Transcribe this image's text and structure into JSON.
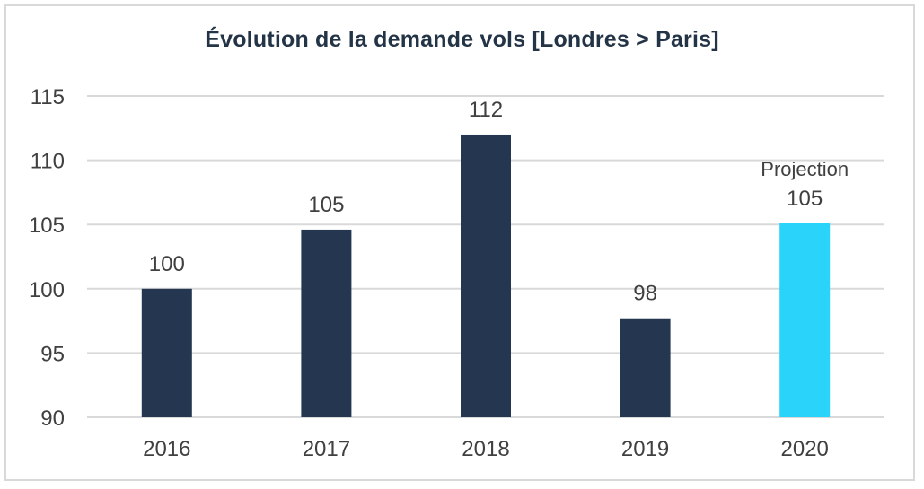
{
  "chart_data": {
    "type": "bar",
    "title": "Évolution de la demande vols [Londres > Paris]",
    "xlabel": "",
    "ylabel": "",
    "categories": [
      "2016",
      "2017",
      "2018",
      "2019",
      "2020"
    ],
    "values": [
      100,
      104.6,
      112,
      97.7,
      105.1
    ],
    "data_labels": [
      "100",
      "105",
      "112",
      "98",
      "105"
    ],
    "annotations": [
      {
        "category": "2020",
        "text": "Projection"
      }
    ],
    "ylim": [
      90,
      115
    ],
    "yticks": [
      90,
      95,
      100,
      105,
      110,
      115
    ],
    "grid": true,
    "legend": "none",
    "colors": {
      "bar": "#253750",
      "projection_bar": "#29D3F9",
      "grid": "#d9d9d9",
      "title": "#243447",
      "text": "#404040"
    }
  }
}
